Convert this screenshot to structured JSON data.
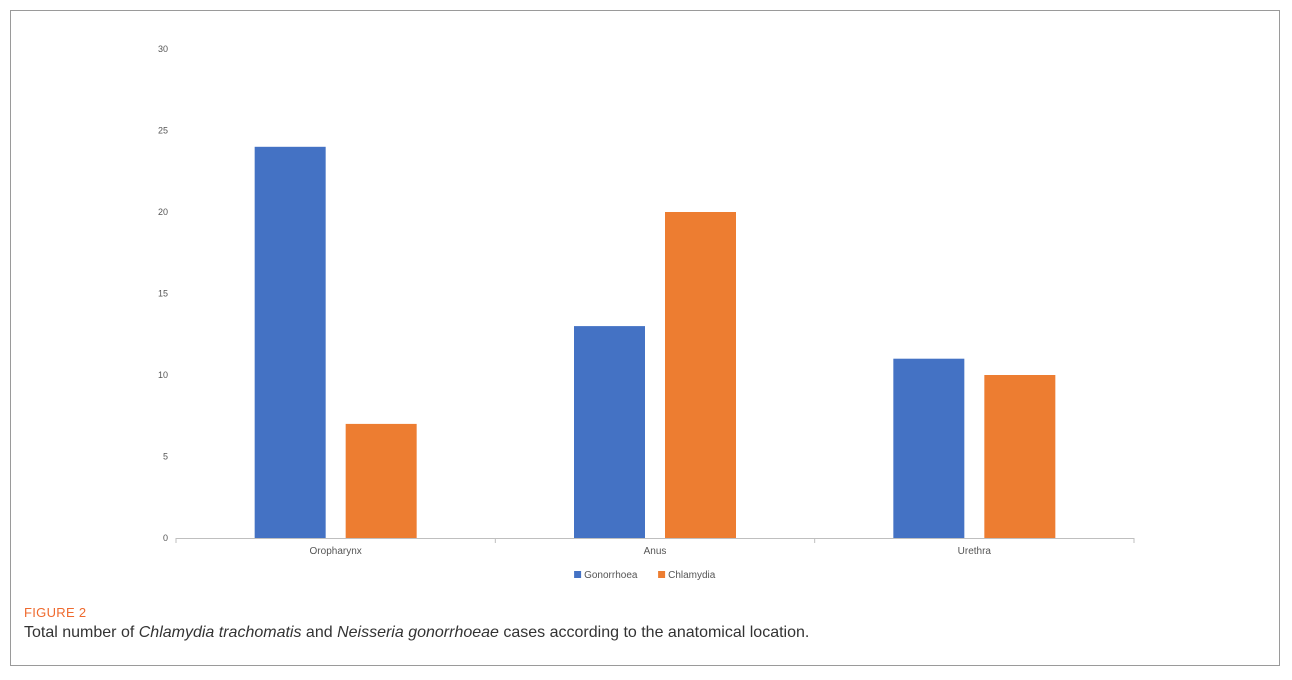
{
  "chart_data": {
    "type": "bar",
    "categories": [
      "Oropharynx",
      "Anus",
      "Urethra"
    ],
    "series": [
      {
        "name": "Gonorrhoea",
        "values": [
          24,
          13,
          11
        ],
        "color": "#4472c4"
      },
      {
        "name": "Chlamydia",
        "values": [
          7,
          20,
          10
        ],
        "color": "#ed7d31"
      }
    ],
    "ylim": [
      0,
      30
    ],
    "yticks": [
      0,
      5,
      10,
      15,
      20,
      25,
      30
    ],
    "grid": false,
    "legend": "bottom-center"
  },
  "caption": {
    "label": "FIGURE 2",
    "text_1": "Total number of ",
    "text_2": "Chlamydia trachomatis",
    "text_3": " and ",
    "text_4": "Neisseria gonorrhoeae",
    "text_5": " cases according to the anatomical location."
  },
  "colors": {
    "label": "#ef6a2e",
    "frame": "#9a9a9a"
  }
}
